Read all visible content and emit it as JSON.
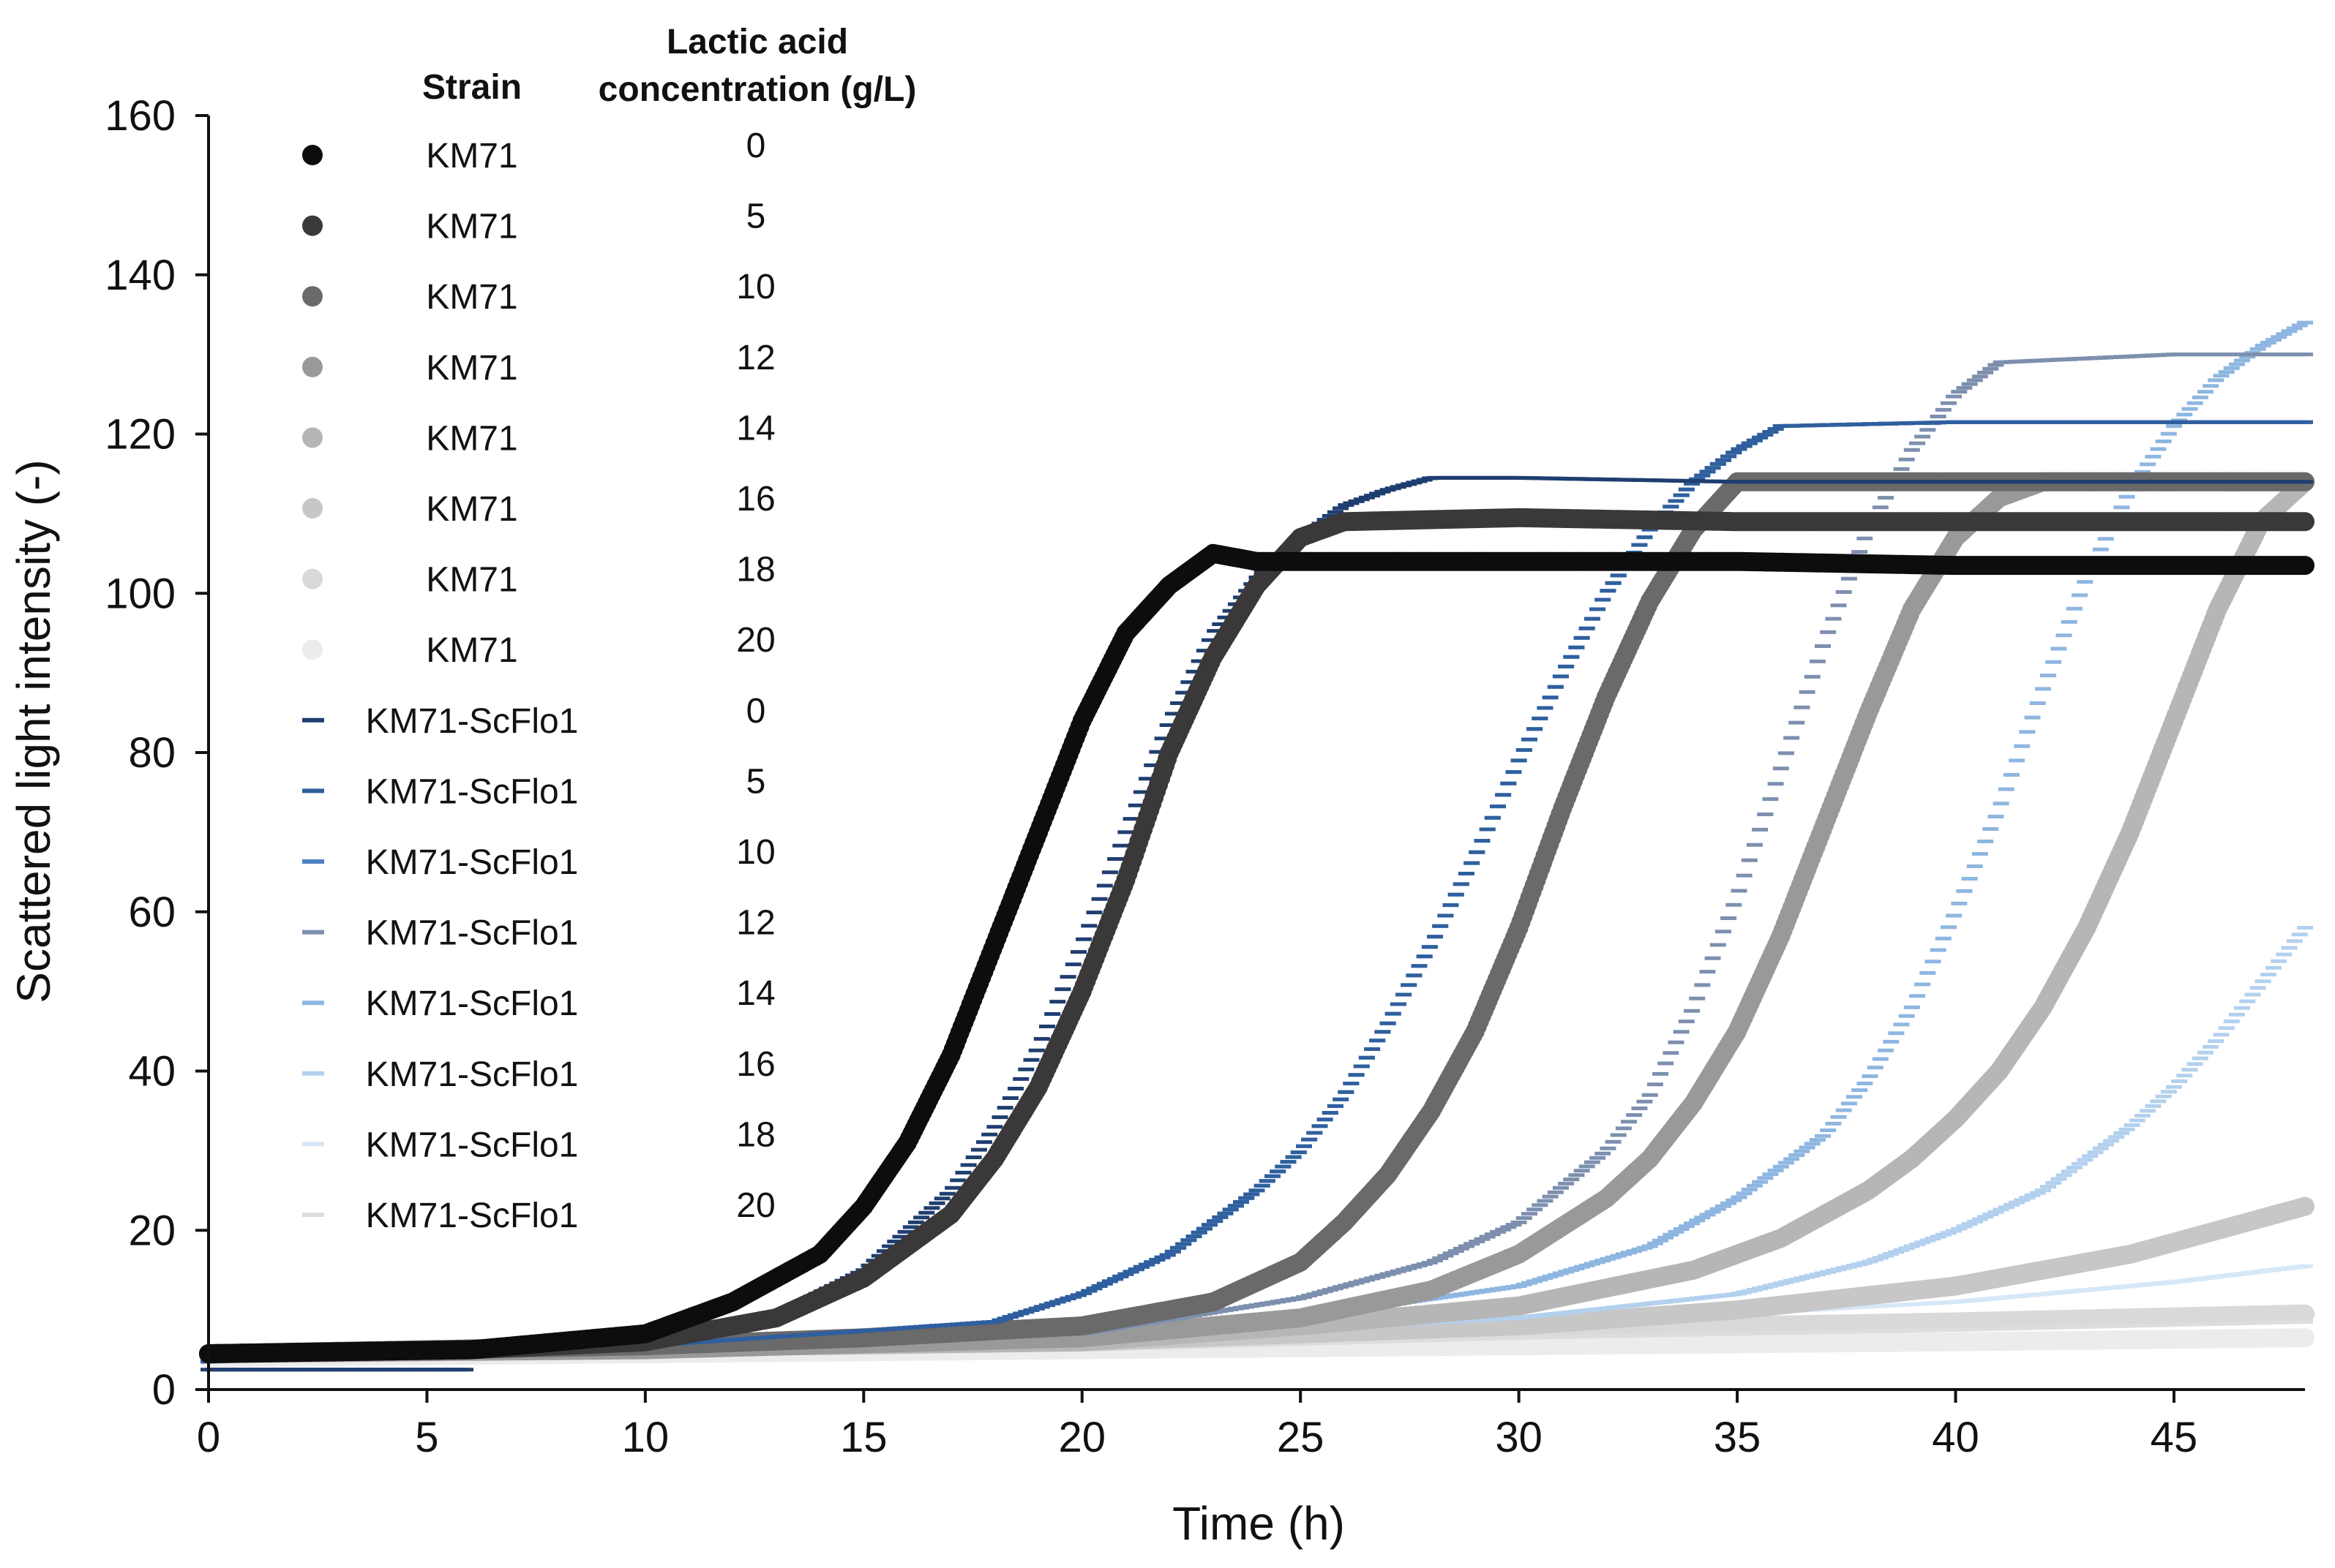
{
  "chart_data": {
    "type": "scatter",
    "xlabel": "Time (h)",
    "ylabel": "Scattered light intensity  (-)",
    "xlim": [
      0,
      48
    ],
    "ylim": [
      0,
      160
    ],
    "xticks": [
      0,
      5,
      10,
      15,
      20,
      25,
      30,
      35,
      40,
      45
    ],
    "yticks": [
      0,
      20,
      40,
      60,
      80,
      100,
      120,
      140,
      160
    ],
    "legend": {
      "placement": "top-left",
      "strain_header": "Strain",
      "concentration_header_line1": "Lactic acid",
      "concentration_header_line2": "concentration (g/L)"
    },
    "series": [
      {
        "name": "KM71",
        "concentration": "0",
        "marker": "circle",
        "color": "#0d0d0d",
        "x": [
          0,
          6,
          10,
          12,
          14,
          15,
          16,
          17,
          18,
          19,
          20,
          21,
          22,
          23,
          24,
          30,
          35,
          40,
          45,
          48
        ],
        "y": [
          4.5,
          5,
          7,
          11,
          17,
          23,
          31,
          42,
          56,
          70,
          84,
          95,
          101,
          105,
          104,
          104,
          104,
          103.5,
          103.5,
          103.5
        ]
      },
      {
        "name": "KM71",
        "concentration": "5",
        "marker": "circle",
        "color": "#3a3838",
        "x": [
          0,
          6,
          10,
          13,
          15,
          17,
          18,
          19,
          20,
          21,
          22,
          23,
          24,
          25,
          26,
          30,
          35,
          40,
          45,
          48
        ],
        "y": [
          4.5,
          5,
          6,
          9,
          14,
          22,
          29,
          38,
          50,
          64,
          80,
          92,
          101,
          107,
          109,
          109.5,
          109,
          109,
          109,
          109
        ]
      },
      {
        "name": "KM71",
        "concentration": "10",
        "marker": "circle",
        "color": "#6b6a6a",
        "x": [
          0,
          10,
          15,
          20,
          23,
          25,
          26,
          27,
          28,
          29,
          30,
          31,
          32,
          33,
          34,
          35,
          40,
          45,
          48
        ],
        "y": [
          4.5,
          5.5,
          6.5,
          8,
          11,
          16,
          21,
          27,
          35,
          45,
          58,
          73,
          87,
          99,
          108,
          114,
          114,
          114,
          114
        ]
      },
      {
        "name": "KM71",
        "concentration": "12",
        "marker": "circle",
        "color": "#9a9999",
        "x": [
          0,
          10,
          20,
          25,
          28,
          30,
          32,
          33,
          34,
          35,
          36,
          37,
          38,
          39,
          40,
          41,
          42,
          45,
          48
        ],
        "y": [
          4.5,
          5,
          6.5,
          9,
          12.5,
          17,
          24,
          29,
          36,
          45,
          57,
          71,
          85,
          98,
          107,
          112,
          114,
          114,
          114
        ]
      },
      {
        "name": "KM71",
        "concentration": "14",
        "marker": "circle",
        "color": "#b7b6b6",
        "x": [
          0,
          20,
          25,
          30,
          34,
          36,
          38,
          39,
          40,
          41,
          42,
          43,
          44,
          45,
          46,
          47,
          48
        ],
        "y": [
          4.5,
          6,
          8,
          10.5,
          15,
          19,
          25,
          29,
          34,
          40,
          48,
          58,
          70,
          84,
          98,
          109,
          114
        ]
      },
      {
        "name": "KM71",
        "concentration": "16",
        "marker": "circle",
        "color": "#c7c7c7",
        "x": [
          0,
          20,
          30,
          35,
          40,
          42,
          44,
          45,
          46,
          47,
          48
        ],
        "y": [
          4.5,
          6,
          8,
          10,
          13,
          15,
          17,
          18.5,
          20,
          21.5,
          23
        ]
      },
      {
        "name": "KM71",
        "concentration": "18",
        "marker": "circle",
        "color": "#d9d9d9",
        "x": [
          0,
          20,
          30,
          40,
          48
        ],
        "y": [
          4.5,
          6,
          7.5,
          8.5,
          9.5
        ]
      },
      {
        "name": "KM71",
        "concentration": "20",
        "marker": "circle",
        "color": "#ececec",
        "x": [
          0,
          20,
          30,
          40,
          48
        ],
        "y": [
          4,
          5,
          5.5,
          6,
          6.5
        ]
      },
      {
        "name": "KM71-ScFlo1",
        "concentration": "0",
        "marker": "dash",
        "color": "#1f3e70",
        "x": [
          0,
          5.9,
          6,
          10,
          13,
          15,
          17,
          18,
          19,
          20,
          21,
          22,
          23,
          24,
          25,
          26,
          27,
          28,
          30,
          35,
          40,
          45,
          48
        ],
        "y": [
          2.5,
          2.5,
          5,
          6,
          9.5,
          15,
          25,
          33,
          43,
          56,
          70,
          84,
          95,
          102,
          107,
          111,
          113,
          114.5,
          114.5,
          114,
          114,
          114,
          114
        ]
      },
      {
        "name": "KM71-ScFlo1",
        "concentration": "5",
        "marker": "dash",
        "color": "#2f5f9e",
        "x": [
          0,
          10,
          18,
          20,
          22,
          24,
          25,
          26,
          27,
          28,
          29,
          30,
          31,
          32,
          33,
          34,
          35,
          36,
          40,
          45,
          48
        ],
        "y": [
          3.5,
          5.5,
          8.5,
          12,
          17,
          25,
          30,
          37,
          46,
          56,
          67,
          79,
          90,
          100,
          108,
          114,
          118,
          121,
          121.5,
          121.5,
          121.5
        ]
      },
      {
        "name": "KM71-ScFlo1",
        "concentration": "10",
        "marker": "dash",
        "color": "#4d82c2",
        "x": [
          0,
          10,
          18,
          20,
          22,
          24,
          25,
          26,
          27,
          28,
          29,
          30,
          31,
          32,
          33,
          34,
          35,
          36,
          40,
          45,
          48
        ],
        "y": [
          3.5,
          5.5,
          8.5,
          12,
          17,
          25,
          30,
          37,
          46,
          56,
          67,
          79,
          90,
          100,
          108,
          114,
          118,
          121,
          121.5,
          121.5,
          121.5
        ]
      },
      {
        "name": "KM71-ScFlo1",
        "concentration": "12",
        "marker": "dash",
        "color": "#7d8fae",
        "x": [
          0,
          20,
          25,
          28,
          30,
          32,
          33,
          34,
          35,
          36,
          37,
          38,
          39,
          40,
          41,
          45,
          48
        ],
        "y": [
          4,
          7,
          11.5,
          16,
          21,
          30,
          37,
          48,
          62,
          78,
          94,
          108,
          118,
          125,
          129,
          130,
          130
        ]
      },
      {
        "name": "KM71-ScFlo1",
        "concentration": "14",
        "marker": "dash",
        "color": "#8eb6e0",
        "x": [
          0,
          20,
          25,
          30,
          33,
          35,
          37,
          38,
          39,
          40,
          41,
          42,
          43,
          44,
          45,
          46,
          47,
          48
        ],
        "y": [
          4,
          6.5,
          9,
          13,
          18,
          24,
          32,
          39,
          48,
          60,
          73,
          88,
          102,
          113,
          121,
          127,
          131,
          134
        ]
      },
      {
        "name": "KM71-ScFlo1",
        "concentration": "16",
        "marker": "dash",
        "color": "#b3d0ee",
        "x": [
          0,
          20,
          30,
          35,
          38,
          40,
          42,
          44,
          45,
          46,
          47,
          48
        ],
        "y": [
          4,
          6,
          9,
          12,
          16,
          20,
          25,
          33,
          38,
          44,
          51,
          58
        ]
      },
      {
        "name": "KM71-ScFlo1",
        "concentration": "18",
        "marker": "dash",
        "color": "#d6e7f7",
        "x": [
          0,
          20,
          30,
          40,
          45,
          48
        ],
        "y": [
          4,
          5.5,
          8,
          11,
          13.5,
          15.5
        ]
      },
      {
        "name": "KM71-ScFlo1",
        "concentration": "20",
        "marker": "dash",
        "color": "#dddddd",
        "x": [
          0,
          20,
          30,
          40,
          48
        ],
        "y": [
          4,
          5,
          6.5,
          7.5,
          8.5
        ]
      }
    ]
  }
}
